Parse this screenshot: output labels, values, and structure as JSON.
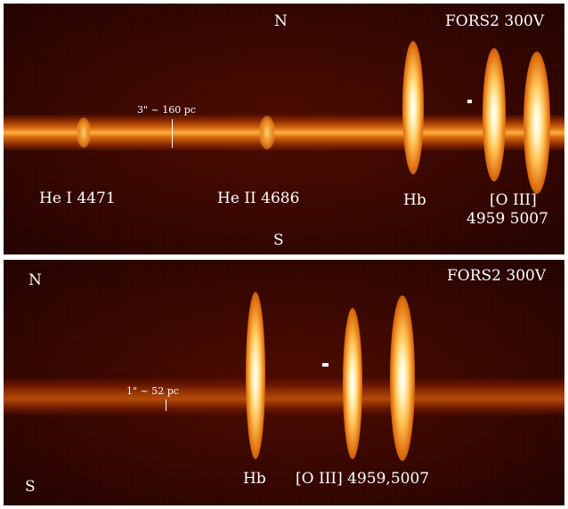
{
  "top_panel": {
    "instrument": "FORS2 300V",
    "north": "N",
    "south": "S",
    "scale_bar": "3\" ~ 160 pc",
    "lines": {
      "he1": "He I 4471",
      "he2": "He II 4686",
      "hb": "Hb",
      "oiii": "[O III]",
      "oiii_waves": "4959 5007"
    }
  },
  "bottom_panel": {
    "instrument": "FORS2 300V",
    "north": "N",
    "south": "S",
    "scale_bar": "1\" ~ 52 pc",
    "lines": {
      "hb": "Hb",
      "oiii": "[O III] 4959,5007"
    }
  },
  "colors": {
    "background": "#2a0500",
    "continuum": "#ffb040",
    "line_core": "#ffffff",
    "label": "#ffffff"
  }
}
